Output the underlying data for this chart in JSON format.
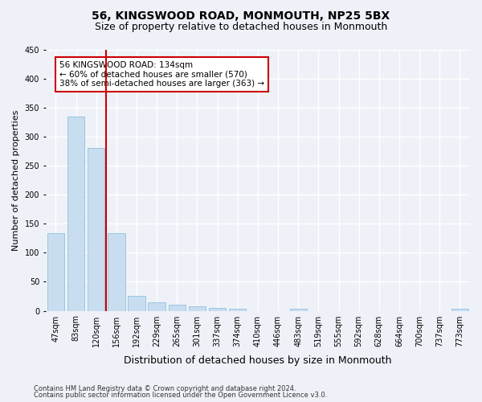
{
  "title": "56, KINGSWOOD ROAD, MONMOUTH, NP25 5BX",
  "subtitle": "Size of property relative to detached houses in Monmouth",
  "xlabel": "Distribution of detached houses by size in Monmouth",
  "ylabel": "Number of detached properties",
  "bar_labels": [
    "47sqm",
    "83sqm",
    "120sqm",
    "156sqm",
    "192sqm",
    "229sqm",
    "265sqm",
    "301sqm",
    "337sqm",
    "374sqm",
    "410sqm",
    "446sqm",
    "483sqm",
    "519sqm",
    "555sqm",
    "592sqm",
    "628sqm",
    "664sqm",
    "700sqm",
    "737sqm",
    "773sqm"
  ],
  "bar_values": [
    133,
    334,
    280,
    133,
    26,
    15,
    11,
    7,
    5,
    4,
    0,
    0,
    4,
    0,
    0,
    0,
    0,
    0,
    0,
    0,
    4
  ],
  "bar_color": "#c9ddf0",
  "bar_edge_color": "#7fb8d8",
  "vline_x": 2.5,
  "vline_color": "#cc0000",
  "annotation_text": "56 KINGSWOOD ROAD: 134sqm\n← 60% of detached houses are smaller (570)\n38% of semi-detached houses are larger (363) →",
  "annotation_box_color": "#ffffff",
  "annotation_box_edge": "#cc0000",
  "ylim": [
    0,
    450
  ],
  "yticks": [
    0,
    50,
    100,
    150,
    200,
    250,
    300,
    350,
    400,
    450
  ],
  "footer1": "Contains HM Land Registry data © Crown copyright and database right 2024.",
  "footer2": "Contains public sector information licensed under the Open Government Licence v3.0.",
  "bg_color": "#eef2f8",
  "plot_bg_color": "#eef2f8",
  "title_fontsize": 10,
  "subtitle_fontsize": 9,
  "tick_fontsize": 7,
  "ylabel_fontsize": 8,
  "xlabel_fontsize": 9
}
